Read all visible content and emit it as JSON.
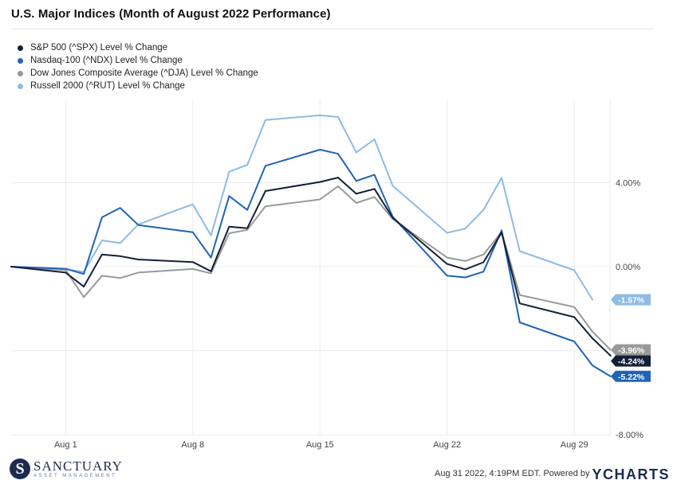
{
  "title": "U.S. Major Indices (Month of August 2022 Performance)",
  "colors": {
    "spx": "#141f36",
    "ndx": "#1f64b7",
    "dja": "#999999",
    "rut": "#8dbbe6",
    "gridline": "#ececec",
    "tick_text": "#444444"
  },
  "chart_data": {
    "type": "line",
    "title": "U.S. Major Indices (Month of August 2022 Performance)",
    "xlabel": "",
    "ylabel": "",
    "x_axis": {
      "type": "date",
      "range": [
        "2022-07-29",
        "2022-08-31"
      ],
      "ticks": [
        {
          "label": "Aug 1",
          "date": "2022-08-01"
        },
        {
          "label": "Aug 8",
          "date": "2022-08-08"
        },
        {
          "label": "Aug 15",
          "date": "2022-08-15"
        },
        {
          "label": "Aug 22",
          "date": "2022-08-22"
        },
        {
          "label": "Aug 29",
          "date": "2022-08-29"
        }
      ]
    },
    "y_axis": {
      "position": "right",
      "range": [
        -8.0,
        8.0
      ],
      "ticks": [
        {
          "label": "4.00%",
          "value": 4
        },
        {
          "label": "0.00%",
          "value": 0
        },
        {
          "label": "-8.00%",
          "value": -8
        }
      ],
      "gridlines": [
        4,
        0,
        -4,
        -8
      ]
    },
    "grid": true,
    "legend": "top-left",
    "series": [
      {
        "name": "S&P 500 (^SPX) Level % Change",
        "key": "spx",
        "end_label": "-4.24%",
        "points": [
          [
            "2022-07-29",
            0.0
          ],
          [
            "2022-08-01",
            -0.28
          ],
          [
            "2022-08-02",
            -0.95
          ],
          [
            "2022-08-03",
            0.58
          ],
          [
            "2022-08-04",
            0.5
          ],
          [
            "2022-08-05",
            0.34
          ],
          [
            "2022-08-08",
            0.22
          ],
          [
            "2022-08-09",
            -0.22
          ],
          [
            "2022-08-10",
            1.9
          ],
          [
            "2022-08-11",
            1.83
          ],
          [
            "2022-08-12",
            3.6
          ],
          [
            "2022-08-15",
            4.03
          ],
          [
            "2022-08-16",
            4.24
          ],
          [
            "2022-08-17",
            3.47
          ],
          [
            "2022-08-18",
            3.7
          ],
          [
            "2022-08-19",
            2.33
          ],
          [
            "2022-08-22",
            0.13
          ],
          [
            "2022-08-23",
            -0.13
          ],
          [
            "2022-08-24",
            0.21
          ],
          [
            "2022-08-25",
            1.62
          ],
          [
            "2022-08-26",
            -1.75
          ],
          [
            "2022-08-29",
            -2.4
          ],
          [
            "2022-08-30",
            -3.41
          ],
          [
            "2022-08-31",
            -4.24
          ]
        ]
      },
      {
        "name": "Nasdaq-100 (^NDX) Level % Change",
        "key": "ndx",
        "end_label": "-5.22%",
        "points": [
          [
            "2022-07-29",
            0.0
          ],
          [
            "2022-08-01",
            -0.1
          ],
          [
            "2022-08-02",
            -0.35
          ],
          [
            "2022-08-03",
            2.35
          ],
          [
            "2022-08-04",
            2.8
          ],
          [
            "2022-08-05",
            1.98
          ],
          [
            "2022-08-08",
            1.64
          ],
          [
            "2022-08-09",
            0.43
          ],
          [
            "2022-08-10",
            3.36
          ],
          [
            "2022-08-11",
            2.7
          ],
          [
            "2022-08-12",
            4.8
          ],
          [
            "2022-08-15",
            5.57
          ],
          [
            "2022-08-16",
            5.37
          ],
          [
            "2022-08-17",
            4.08
          ],
          [
            "2022-08-18",
            4.37
          ],
          [
            "2022-08-19",
            2.38
          ],
          [
            "2022-08-22",
            -0.43
          ],
          [
            "2022-08-23",
            -0.51
          ],
          [
            "2022-08-24",
            -0.24
          ],
          [
            "2022-08-25",
            1.73
          ],
          [
            "2022-08-26",
            -2.65
          ],
          [
            "2022-08-29",
            -3.56
          ],
          [
            "2022-08-30",
            -4.7
          ],
          [
            "2022-08-31",
            -5.22
          ]
        ]
      },
      {
        "name": "Dow Jones Composite Average (^DJA) Level % Change",
        "key": "dja",
        "end_label": "-3.96%",
        "points": [
          [
            "2022-07-29",
            0.0
          ],
          [
            "2022-08-01",
            -0.16
          ],
          [
            "2022-08-02",
            -1.45
          ],
          [
            "2022-08-03",
            -0.43
          ],
          [
            "2022-08-04",
            -0.54
          ],
          [
            "2022-08-05",
            -0.28
          ],
          [
            "2022-08-08",
            -0.11
          ],
          [
            "2022-08-09",
            -0.32
          ],
          [
            "2022-08-10",
            1.59
          ],
          [
            "2022-08-11",
            1.75
          ],
          [
            "2022-08-12",
            2.87
          ],
          [
            "2022-08-15",
            3.2
          ],
          [
            "2022-08-16",
            3.83
          ],
          [
            "2022-08-17",
            3.03
          ],
          [
            "2022-08-18",
            3.32
          ],
          [
            "2022-08-19",
            2.27
          ],
          [
            "2022-08-22",
            0.43
          ],
          [
            "2022-08-23",
            0.27
          ],
          [
            "2022-08-24",
            0.58
          ],
          [
            "2022-08-25",
            1.65
          ],
          [
            "2022-08-26",
            -1.35
          ],
          [
            "2022-08-29",
            -1.92
          ],
          [
            "2022-08-30",
            -3.09
          ],
          [
            "2022-08-31",
            -3.96
          ]
        ]
      },
      {
        "name": "Russell 2000 (^RUT) Level % Change",
        "key": "rut",
        "end_label": "-1.57%",
        "points": [
          [
            "2022-07-29",
            0.0
          ],
          [
            "2022-08-01",
            -0.12
          ],
          [
            "2022-08-02",
            -0.25
          ],
          [
            "2022-08-03",
            1.25
          ],
          [
            "2022-08-04",
            1.12
          ],
          [
            "2022-08-05",
            2.01
          ],
          [
            "2022-08-08",
            2.97
          ],
          [
            "2022-08-09",
            1.48
          ],
          [
            "2022-08-10",
            4.52
          ],
          [
            "2022-08-11",
            4.84
          ],
          [
            "2022-08-12",
            6.98
          ],
          [
            "2022-08-15",
            7.2
          ],
          [
            "2022-08-16",
            7.12
          ],
          [
            "2022-08-17",
            5.43
          ],
          [
            "2022-08-18",
            6.06
          ],
          [
            "2022-08-19",
            3.85
          ],
          [
            "2022-08-22",
            1.61
          ],
          [
            "2022-08-23",
            1.81
          ],
          [
            "2022-08-24",
            2.7
          ],
          [
            "2022-08-25",
            4.23
          ],
          [
            "2022-08-26",
            0.74
          ],
          [
            "2022-08-29",
            -0.17
          ],
          [
            "2022-08-30",
            -1.57
          ]
        ]
      }
    ]
  },
  "footer": {
    "logo_letter": "S",
    "logo_name": "SANCTUARY",
    "logo_tagline": "ASSET MANAGEMENT",
    "timestamp": "Aug 31 2022, 4:19PM EDT.",
    "powered_by": "Powered by",
    "brand": "YCHARTS"
  }
}
